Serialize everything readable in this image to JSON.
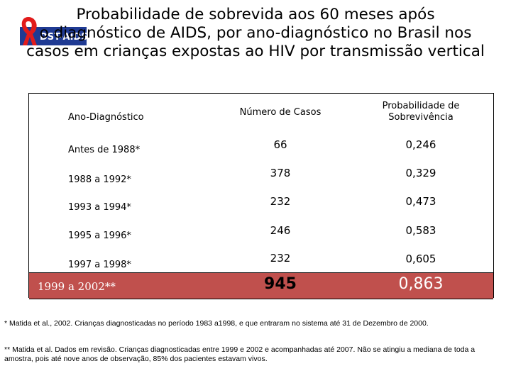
{
  "logo": {
    "text": "DST-AIDS"
  },
  "title": {
    "line1": "Probabilidade de sobrevida aos 60 meses após",
    "line2": "o diagnóstico de AIDS, por ano-diagnóstico no Brasil nos",
    "line3": "casos em crianças expostas ao HIV por transmissão vertical"
  },
  "table": {
    "headers": {
      "year": "Ano-Diagnóstico",
      "cases": "Número de Casos",
      "prob_line1": "Probabilidade de",
      "prob_line2": "Sobrevivência"
    },
    "rows": [
      {
        "year": "Antes de 1988*",
        "cases": "66",
        "prob": "0,246"
      },
      {
        "year": "1988 a 1992*",
        "cases": "378",
        "prob": "0,329"
      },
      {
        "year": "1993 a 1994*",
        "cases": "232",
        "prob": "0,473"
      },
      {
        "year": "1995 a 1996*",
        "cases": "246",
        "prob": "0,583"
      },
      {
        "year": "1997 a 1998*",
        "cases": "232",
        "prob": "0,605"
      }
    ],
    "highlight_row": {
      "year": "1999 a 2002**",
      "cases": "945",
      "prob": "0,863"
    },
    "highlight_color": "#c0504d"
  },
  "footnotes": {
    "note1": "* Matida et al., 2002.  Crianças diagnosticadas no período 1983 a1998, e que entraram no sistema até 31 de Dezembro de 2000.",
    "note2": "** Matida et al. Dados em revisão. Crianças diagnosticadas entre 1999 e 2002 e acompanhadas até 2007. Não se atingiu a mediana de toda a amostra, pois até nove anos de observação, 85% dos pacientes estavam vivos."
  }
}
